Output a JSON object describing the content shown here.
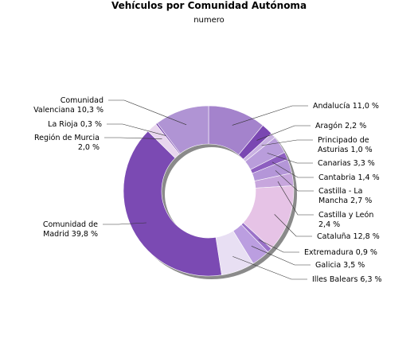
{
  "chart_data": {
    "type": "pie",
    "title": "Vehículos por Comunidad Autónoma",
    "subtitle": "numero",
    "slices": [
      {
        "label": "Andalucía 11,0 %",
        "value": 11.0,
        "color": "#a483cc"
      },
      {
        "label": "Aragón 2,2 %",
        "value": 2.2,
        "color": "#7a47b2"
      },
      {
        "label": "Principado de Asturias 1,0 %",
        "value": 1.0,
        "color": "#c9b2e2"
      },
      {
        "label": "Canarias 3,3 %",
        "value": 3.3,
        "color": "#b99ddb"
      },
      {
        "label": "Cantabria 1,4 %",
        "value": 1.4,
        "color": "#8d5ec0"
      },
      {
        "label": "Castilla - La Mancha 2,7 %",
        "value": 2.7,
        "color": "#b496d8"
      },
      {
        "label": "Castilla y León 2,4 %",
        "value": 2.4,
        "color": "#c7a6dd"
      },
      {
        "label": "Cataluña 12,8 %",
        "value": 12.8,
        "color": "#e6c3e6"
      },
      {
        "label": "Extremadura 0,9 %",
        "value": 0.9,
        "color": "#9a72c8"
      },
      {
        "label": "Galicia 3,5 %",
        "value": 3.5,
        "color": "#bb9ee0"
      },
      {
        "label": "Illes Balears 6,3 %",
        "value": 6.3,
        "color": "#e8dff3"
      },
      {
        "label": "Comunidad de Madrid 39,8 %",
        "value": 39.8,
        "color": "#7b4ab3"
      },
      {
        "label": "Región de Murcia 2,0 %",
        "value": 2.0,
        "color": "#e8d6ee"
      },
      {
        "label": "La Rioja 0,3 %",
        "value": 0.3,
        "color": "#6f3aa8"
      },
      {
        "label": "Comunidad Valenciana 10,3 %",
        "value": 10.3,
        "color": "#b094d4"
      }
    ],
    "legend": "none"
  }
}
